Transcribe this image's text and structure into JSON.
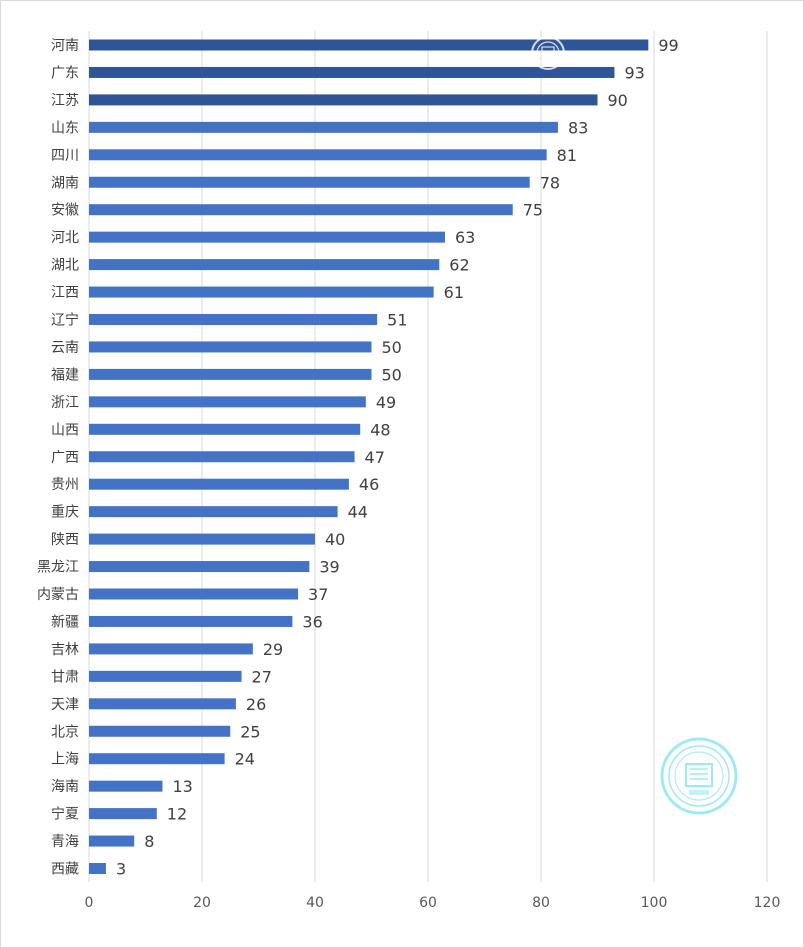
{
  "chart_data": {
    "type": "bar",
    "orientation": "horizontal",
    "categories": [
      "河南",
      "广东",
      "江苏",
      "山东",
      "四川",
      "湖南",
      "安徽",
      "河北",
      "湖北",
      "江西",
      "辽宁",
      "云南",
      "福建",
      "浙江",
      "山西",
      "广西",
      "贵州",
      "重庆",
      "陕西",
      "黑龙江",
      "内蒙古",
      "新疆",
      "吉林",
      "甘肃",
      "天津",
      "北京",
      "上海",
      "海南",
      "宁夏",
      "青海",
      "西藏"
    ],
    "values": [
      99,
      93,
      90,
      83,
      81,
      78,
      75,
      63,
      62,
      61,
      51,
      50,
      50,
      49,
      48,
      47,
      46,
      44,
      40,
      39,
      37,
      36,
      29,
      27,
      26,
      25,
      24,
      13,
      12,
      8,
      3
    ],
    "title": "",
    "xlabel": "",
    "ylabel": "",
    "xlim": [
      0,
      120
    ],
    "xticks": [
      0,
      20,
      40,
      60,
      80,
      100,
      120
    ],
    "grid": "vertical",
    "legend": "none",
    "colors": {
      "bar": "#4472c4",
      "bar_top": "#2f5597",
      "grid": "#d9d9d9",
      "text": "#404040",
      "watermark": "#7fe3ee"
    }
  }
}
